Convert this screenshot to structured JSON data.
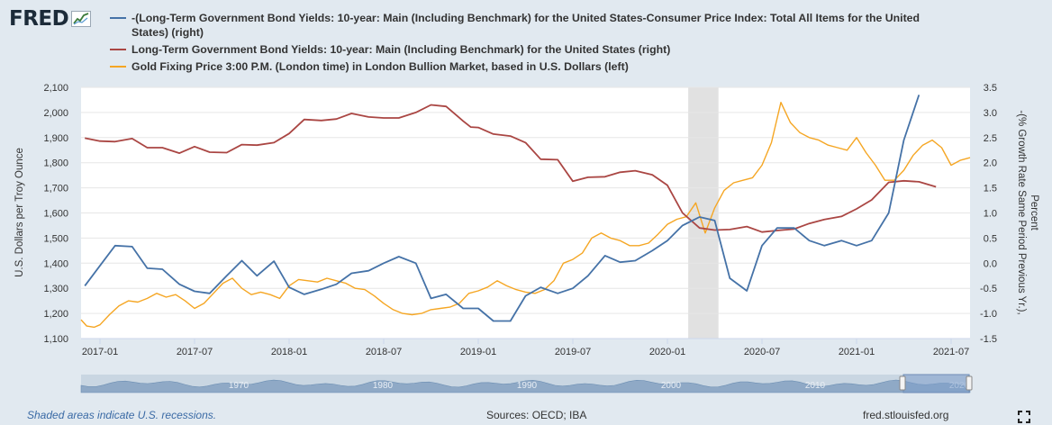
{
  "logo": {
    "text": "FRED"
  },
  "legend": [
    {
      "label": "-(Long-Term Government Bond Yields: 10-year: Main (Including Benchmark) for the United States-Consumer Price Index: Total All Items for the United States) (right)",
      "color": "#4572a7"
    },
    {
      "label": "Long-Term Government Bond Yields: 10-year: Main (Including Benchmark) for the United States (right)",
      "color": "#aa4643"
    },
    {
      "label": "Gold Fixing Price 3:00 P.M. (London time) in London Bullion Market, based in U.S. Dollars (left)",
      "color": "#f5a623"
    }
  ],
  "chart_data": {
    "type": "line",
    "x_range": [
      2016.9,
      2021.6
    ],
    "x_ticks": [
      {
        "x": 2017.0,
        "label": "2017-01"
      },
      {
        "x": 2017.5,
        "label": "2017-07"
      },
      {
        "x": 2018.0,
        "label": "2018-01"
      },
      {
        "x": 2018.5,
        "label": "2018-07"
      },
      {
        "x": 2019.0,
        "label": "2019-01"
      },
      {
        "x": 2019.5,
        "label": "2019-07"
      },
      {
        "x": 2020.0,
        "label": "2020-01"
      },
      {
        "x": 2020.5,
        "label": "2020-07"
      },
      {
        "x": 2021.0,
        "label": "2021-01"
      },
      {
        "x": 2021.5,
        "label": "2021-07"
      }
    ],
    "y_left": {
      "title": "U.S. Dollars per Troy Ounce",
      "min": 1100,
      "max": 2100,
      "ticks": [
        "1,100",
        "1,200",
        "1,300",
        "1,400",
        "1,500",
        "1,600",
        "1,700",
        "1,800",
        "1,900",
        "2,000",
        "2,100"
      ]
    },
    "y_right": {
      "title_line1": "-(% Growth Rate Same Period Previous Yr.),",
      "title_line2": "Percent",
      "min": -1.5,
      "max": 3.5,
      "ticks": [
        "-1.5",
        "-1.0",
        "-0.5",
        "0.0",
        "0.5",
        "1.0",
        "1.5",
        "2.0",
        "2.5",
        "3.0",
        "3.5"
      ]
    },
    "recession": {
      "start": 2020.11,
      "end": 2020.27
    },
    "series": [
      {
        "name": "-(10Y yield - CPI growth)",
        "axis": "right",
        "color": "#4572a7",
        "points": [
          [
            2016.92,
            -0.45
          ],
          [
            2017.0,
            -0.05
          ],
          [
            2017.08,
            0.35
          ],
          [
            2017.17,
            0.33
          ],
          [
            2017.25,
            -0.1
          ],
          [
            2017.33,
            -0.12
          ],
          [
            2017.42,
            -0.42
          ],
          [
            2017.5,
            -0.56
          ],
          [
            2017.58,
            -0.6
          ],
          [
            2017.67,
            -0.25
          ],
          [
            2017.75,
            0.05
          ],
          [
            2017.83,
            -0.25
          ],
          [
            2017.92,
            0.04
          ],
          [
            2018.0,
            -0.48
          ],
          [
            2018.08,
            -0.62
          ],
          [
            2018.17,
            -0.52
          ],
          [
            2018.25,
            -0.42
          ],
          [
            2018.33,
            -0.2
          ],
          [
            2018.42,
            -0.15
          ],
          [
            2018.5,
            0.0
          ],
          [
            2018.58,
            0.13
          ],
          [
            2018.67,
            0.0
          ],
          [
            2018.75,
            -0.7
          ],
          [
            2018.83,
            -0.62
          ],
          [
            2018.92,
            -0.9
          ],
          [
            2019.0,
            -0.9
          ],
          [
            2019.08,
            -1.15
          ],
          [
            2019.17,
            -1.15
          ],
          [
            2019.25,
            -0.65
          ],
          [
            2019.33,
            -0.48
          ],
          [
            2019.42,
            -0.6
          ],
          [
            2019.5,
            -0.5
          ],
          [
            2019.58,
            -0.25
          ],
          [
            2019.67,
            0.15
          ],
          [
            2019.75,
            0.02
          ],
          [
            2019.83,
            0.05
          ],
          [
            2019.92,
            0.25
          ],
          [
            2020.0,
            0.45
          ],
          [
            2020.08,
            0.75
          ],
          [
            2020.17,
            0.92
          ],
          [
            2020.25,
            0.85
          ],
          [
            2020.33,
            -0.3
          ],
          [
            2020.42,
            -0.55
          ],
          [
            2020.5,
            0.35
          ],
          [
            2020.58,
            0.7
          ],
          [
            2020.67,
            0.7
          ],
          [
            2020.75,
            0.45
          ],
          [
            2020.83,
            0.35
          ],
          [
            2020.92,
            0.45
          ],
          [
            2021.0,
            0.35
          ],
          [
            2021.08,
            0.45
          ],
          [
            2021.17,
            1.0
          ],
          [
            2021.25,
            2.45
          ],
          [
            2021.33,
            3.35
          ]
        ]
      },
      {
        "name": "10Y yield",
        "axis": "right",
        "color": "#aa4643",
        "points": [
          [
            2016.92,
            2.49
          ],
          [
            2017.0,
            2.43
          ],
          [
            2017.08,
            2.42
          ],
          [
            2017.17,
            2.48
          ],
          [
            2017.25,
            2.3
          ],
          [
            2017.33,
            2.3
          ],
          [
            2017.42,
            2.19
          ],
          [
            2017.5,
            2.32
          ],
          [
            2017.58,
            2.21
          ],
          [
            2017.67,
            2.2
          ],
          [
            2017.75,
            2.36
          ],
          [
            2017.83,
            2.35
          ],
          [
            2017.92,
            2.4
          ],
          [
            2018.0,
            2.58
          ],
          [
            2018.08,
            2.86
          ],
          [
            2018.17,
            2.84
          ],
          [
            2018.25,
            2.87
          ],
          [
            2018.33,
            2.98
          ],
          [
            2018.42,
            2.91
          ],
          [
            2018.5,
            2.89
          ],
          [
            2018.58,
            2.89
          ],
          [
            2018.67,
            3.0
          ],
          [
            2018.75,
            3.15
          ],
          [
            2018.83,
            3.12
          ],
          [
            2018.92,
            2.83
          ],
          [
            2018.96,
            2.71
          ],
          [
            2019.0,
            2.7
          ],
          [
            2019.08,
            2.57
          ],
          [
            2019.17,
            2.53
          ],
          [
            2019.25,
            2.4
          ],
          [
            2019.33,
            2.07
          ],
          [
            2019.42,
            2.06
          ],
          [
            2019.5,
            1.63
          ],
          [
            2019.58,
            1.71
          ],
          [
            2019.67,
            1.72
          ],
          [
            2019.75,
            1.81
          ],
          [
            2019.83,
            1.84
          ],
          [
            2019.92,
            1.76
          ],
          [
            2020.0,
            1.55
          ],
          [
            2020.08,
            1.0
          ],
          [
            2020.17,
            0.7
          ],
          [
            2020.25,
            0.66
          ],
          [
            2020.33,
            0.67
          ],
          [
            2020.42,
            0.73
          ],
          [
            2020.5,
            0.62
          ],
          [
            2020.58,
            0.65
          ],
          [
            2020.67,
            0.68
          ],
          [
            2020.75,
            0.79
          ],
          [
            2020.83,
            0.87
          ],
          [
            2020.92,
            0.93
          ],
          [
            2021.0,
            1.08
          ],
          [
            2021.08,
            1.26
          ],
          [
            2021.17,
            1.61
          ],
          [
            2021.25,
            1.64
          ],
          [
            2021.33,
            1.62
          ],
          [
            2021.42,
            1.52
          ]
        ]
      },
      {
        "name": "Gold price",
        "axis": "left",
        "color": "#f5a623",
        "points": [
          [
            2016.9,
            1175
          ],
          [
            2016.93,
            1150
          ],
          [
            2016.97,
            1145
          ],
          [
            2017.0,
            1155
          ],
          [
            2017.05,
            1195
          ],
          [
            2017.1,
            1230
          ],
          [
            2017.15,
            1250
          ],
          [
            2017.2,
            1245
          ],
          [
            2017.25,
            1260
          ],
          [
            2017.3,
            1280
          ],
          [
            2017.35,
            1265
          ],
          [
            2017.4,
            1275
          ],
          [
            2017.45,
            1250
          ],
          [
            2017.5,
            1220
          ],
          [
            2017.55,
            1240
          ],
          [
            2017.6,
            1280
          ],
          [
            2017.65,
            1320
          ],
          [
            2017.7,
            1340
          ],
          [
            2017.75,
            1300
          ],
          [
            2017.8,
            1275
          ],
          [
            2017.85,
            1285
          ],
          [
            2017.9,
            1275
          ],
          [
            2017.95,
            1260
          ],
          [
            2018.0,
            1310
          ],
          [
            2018.05,
            1335
          ],
          [
            2018.1,
            1330
          ],
          [
            2018.15,
            1325
          ],
          [
            2018.2,
            1340
          ],
          [
            2018.25,
            1330
          ],
          [
            2018.3,
            1320
          ],
          [
            2018.35,
            1300
          ],
          [
            2018.4,
            1295
          ],
          [
            2018.45,
            1270
          ],
          [
            2018.5,
            1240
          ],
          [
            2018.55,
            1215
          ],
          [
            2018.6,
            1200
          ],
          [
            2018.65,
            1195
          ],
          [
            2018.7,
            1200
          ],
          [
            2018.75,
            1215
          ],
          [
            2018.8,
            1220
          ],
          [
            2018.85,
            1225
          ],
          [
            2018.9,
            1240
          ],
          [
            2018.95,
            1280
          ],
          [
            2019.0,
            1290
          ],
          [
            2019.05,
            1305
          ],
          [
            2019.1,
            1330
          ],
          [
            2019.15,
            1310
          ],
          [
            2019.2,
            1295
          ],
          [
            2019.25,
            1285
          ],
          [
            2019.3,
            1280
          ],
          [
            2019.35,
            1295
          ],
          [
            2019.4,
            1330
          ],
          [
            2019.45,
            1400
          ],
          [
            2019.5,
            1415
          ],
          [
            2019.55,
            1440
          ],
          [
            2019.6,
            1500
          ],
          [
            2019.65,
            1520
          ],
          [
            2019.7,
            1500
          ],
          [
            2019.75,
            1490
          ],
          [
            2019.8,
            1470
          ],
          [
            2019.85,
            1470
          ],
          [
            2019.9,
            1480
          ],
          [
            2019.95,
            1515
          ],
          [
            2020.0,
            1555
          ],
          [
            2020.05,
            1575
          ],
          [
            2020.1,
            1585
          ],
          [
            2020.15,
            1640
          ],
          [
            2020.2,
            1520
          ],
          [
            2020.25,
            1620
          ],
          [
            2020.3,
            1690
          ],
          [
            2020.35,
            1720
          ],
          [
            2020.4,
            1730
          ],
          [
            2020.45,
            1740
          ],
          [
            2020.5,
            1790
          ],
          [
            2020.55,
            1880
          ],
          [
            2020.6,
            2040
          ],
          [
            2020.65,
            1960
          ],
          [
            2020.7,
            1920
          ],
          [
            2020.75,
            1900
          ],
          [
            2020.8,
            1890
          ],
          [
            2020.85,
            1870
          ],
          [
            2020.9,
            1860
          ],
          [
            2020.95,
            1850
          ],
          [
            2021.0,
            1900
          ],
          [
            2021.05,
            1840
          ],
          [
            2021.1,
            1790
          ],
          [
            2021.15,
            1730
          ],
          [
            2021.2,
            1730
          ],
          [
            2021.25,
            1770
          ],
          [
            2021.3,
            1830
          ],
          [
            2021.35,
            1870
          ],
          [
            2021.4,
            1890
          ],
          [
            2021.45,
            1860
          ],
          [
            2021.5,
            1790
          ],
          [
            2021.55,
            1810
          ],
          [
            2021.6,
            1820
          ]
        ]
      }
    ]
  },
  "navigator": {
    "labels": [
      "1970",
      "1980",
      "1990",
      "2000",
      "2010",
      "2020"
    ]
  },
  "footer": {
    "recession_note": "Shaded areas indicate U.S. recessions.",
    "sources": "Sources: OECD; IBA",
    "site": "fred.stlouisfed.org"
  }
}
